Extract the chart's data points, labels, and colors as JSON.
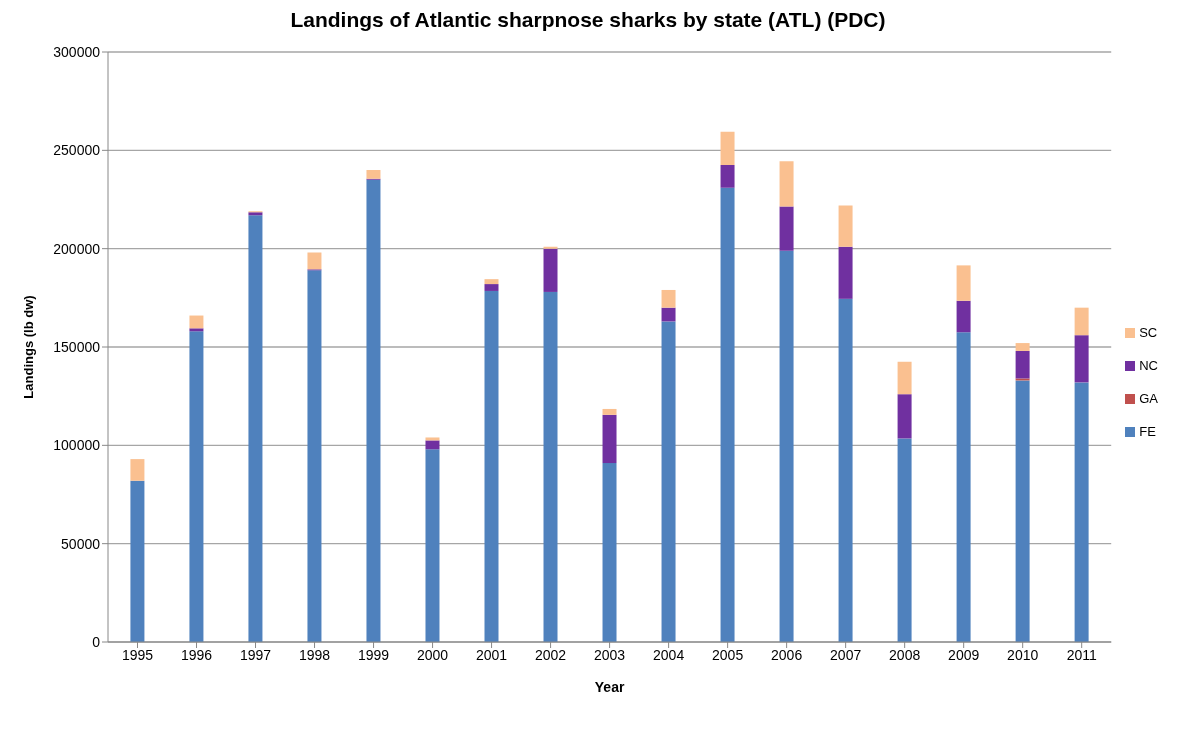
{
  "chart_data": {
    "type": "bar",
    "title": "Landings of Atlantic sharpnose sharks by state (ATL) (PDC)",
    "xlabel": "Year",
    "ylabel": "Landings (lb dw)",
    "categories": [
      "1995",
      "1996",
      "1997",
      "1998",
      "1999",
      "2000",
      "2001",
      "2002",
      "2003",
      "2004",
      "2005",
      "2006",
      "2007",
      "2008",
      "2009",
      "2010",
      "2011"
    ],
    "stacked": true,
    "ylim": [
      0,
      300000
    ],
    "yticks": [
      0,
      50000,
      100000,
      150000,
      200000,
      250000,
      300000
    ],
    "grid": "y",
    "legend": "right",
    "series": [
      {
        "name": "FE",
        "color": "#4f81bd",
        "values": [
          82000,
          158000,
          217000,
          189000,
          235000,
          98000,
          178500,
          178000,
          91000,
          163000,
          231000,
          199000,
          174500,
          103500,
          157500,
          133000,
          132000
        ]
      },
      {
        "name": "GA",
        "color": "#c0504d",
        "values": [
          0,
          0,
          0,
          0,
          0,
          0,
          0,
          0,
          0,
          0,
          0,
          0,
          0,
          0,
          0,
          1000,
          0
        ]
      },
      {
        "name": "NC",
        "color": "#7030a0",
        "values": [
          0,
          1500,
          1500,
          500,
          500,
          4500,
          3500,
          22000,
          24500,
          7000,
          11500,
          22500,
          26500,
          22500,
          16000,
          14000,
          24000
        ]
      },
      {
        "name": "SC",
        "color": "#fac090",
        "values": [
          11000,
          6500,
          500,
          8500,
          4500,
          1500,
          2500,
          1000,
          3000,
          9000,
          17000,
          23000,
          21000,
          16500,
          18000,
          4000,
          14000
        ]
      }
    ]
  }
}
